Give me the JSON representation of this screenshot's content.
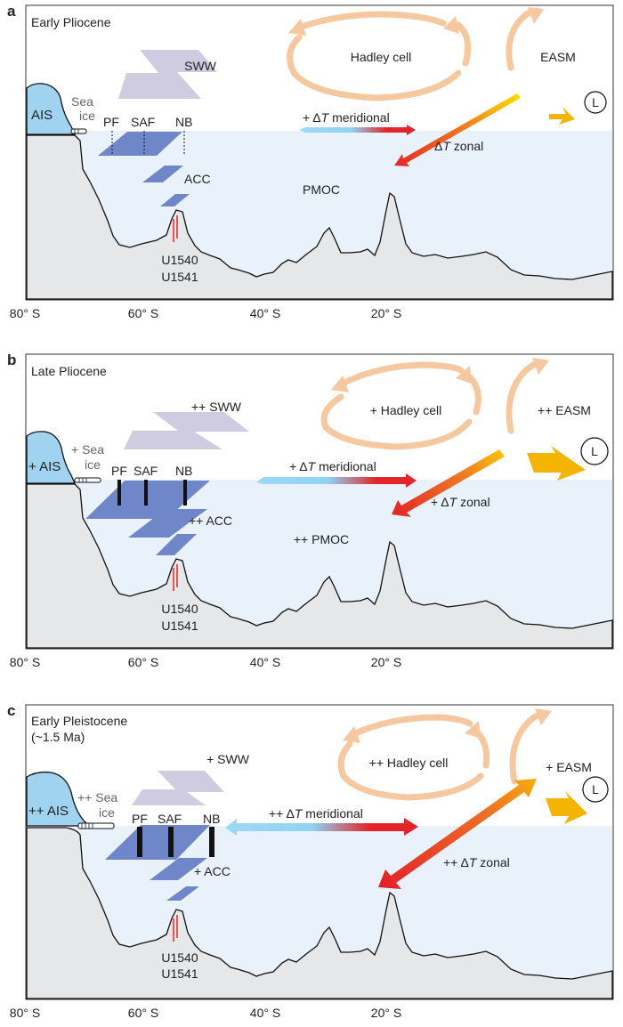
{
  "colors": {
    "ocean": "#e9f2fb",
    "land": "#e6e7e8",
    "ice": "#9fd3f0",
    "wind": "#cfcce2",
    "current": "#6f86c8",
    "hadley": "#f6c8a0",
    "warm": "#e32428",
    "cold": "#8fd3f4",
    "easm": "#f5b400",
    "core": "#e32428"
  },
  "axis_ticks": [
    "80° S",
    "60° S",
    "40° S",
    "20° S"
  ],
  "panels": [
    {
      "letter": "a",
      "period": "Early Pliocene",
      "period_sub": "",
      "ais": "AIS",
      "sea": "Sea",
      "ice": "ice",
      "sww": "SWW",
      "fronts": {
        "pf": "PF",
        "saf": "SAF",
        "nb": "NB"
      },
      "acc": "ACC",
      "pmoc": "PMOC",
      "hadley": "Hadley cell",
      "easm": "EASM",
      "meridional_prefix": "+ Δ",
      "meridional_suffix": " meridional",
      "zonal_prefix": "Δ",
      "zonal_suffix": " zonal",
      "T": "T",
      "site1": "U1540",
      "site2": "U1541",
      "low": "L"
    },
    {
      "letter": "b",
      "period": "Late Pliocene",
      "period_sub": "",
      "ais": "+ AIS",
      "sea": "+ Sea",
      "ice": "ice",
      "sww": "++ SWW",
      "fronts": {
        "pf": "PF",
        "saf": "SAF",
        "nb": "NB"
      },
      "acc": "++ ACC",
      "pmoc": "++ PMOC",
      "hadley": "+ Hadley cell",
      "easm": "++ EASM",
      "meridional_prefix": "+ Δ",
      "meridional_suffix": " meridional",
      "zonal_prefix": "+ Δ",
      "zonal_suffix": " zonal",
      "T": "T",
      "site1": "U1540",
      "site2": "U1541",
      "low": "L"
    },
    {
      "letter": "c",
      "period": "Early Pleistocene",
      "period_sub": "(~1.5 Ma)",
      "ais": "++ AIS",
      "sea": "++ Sea",
      "ice": "ice",
      "sww": "+ SWW",
      "fronts": {
        "pf": "PF",
        "saf": "SAF",
        "nb": "NB"
      },
      "acc": "+ ACC",
      "pmoc": "",
      "hadley": "++ Hadley cell",
      "easm": "+ EASM",
      "meridional_prefix": "++ Δ",
      "meridional_suffix": " meridional",
      "zonal_prefix": "++ Δ",
      "zonal_suffix": " zonal",
      "T": "T",
      "site1": "U1540",
      "site2": "U1541",
      "low": "L"
    }
  ]
}
